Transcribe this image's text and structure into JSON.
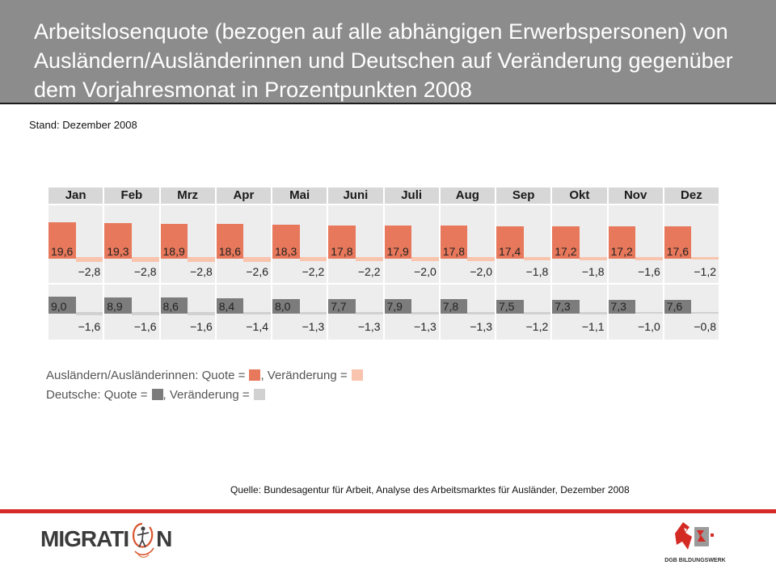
{
  "chart_data": {
    "type": "bar",
    "title_lines": [
      "Arbeitslosenquote (bezogen auf alle abhängigen Erwerbspersonen) von",
      "Ausländern/Ausländerinnen und Deutschen auf Veränderung gegenüber",
      "dem Vorjahresmonat in Prozentpunkten 2008"
    ],
    "subtitle": "Stand: Dezember 2008",
    "categories": [
      "Jan",
      "Feb",
      "Mrz",
      "Apr",
      "Mai",
      "Juni",
      "Juli",
      "Aug",
      "Sep",
      "Okt",
      "Nov",
      "Dez"
    ],
    "series": [
      {
        "legend_text": "Ausländern/Ausländerinnen: Quote =",
        "color": "#e8785b",
        "values": [
          19.6,
          19.3,
          18.9,
          18.6,
          18.3,
          17.8,
          17.9,
          17.8,
          17.4,
          17.2,
          17.2,
          17.6
        ]
      },
      {
        "legend_text": ", Veränderung =",
        "color": "#f8c4ad",
        "values": [
          -2.8,
          -2.8,
          -2.8,
          -2.6,
          -2.2,
          -2.2,
          -2.0,
          -2.0,
          -1.8,
          -1.8,
          -1.6,
          -1.2
        ]
      },
      {
        "legend_text": "Deutsche: Quote =",
        "color": "#7c7c7c",
        "values": [
          9.0,
          8.9,
          8.6,
          8.4,
          8.0,
          7.7,
          7.9,
          7.8,
          7.5,
          7.3,
          7.3,
          7.6
        ]
      },
      {
        "legend_text": ", Veränderung =",
        "color": "#d1d1d1",
        "values": [
          -1.6,
          -1.6,
          -1.6,
          -1.4,
          -1.3,
          -1.3,
          -1.3,
          -1.3,
          -1.2,
          -1.1,
          -1.0,
          -0.8
        ]
      }
    ],
    "data_labels": true,
    "grid": false,
    "legend_position": "bottom-left",
    "source": "Quelle: Bundesagentur für Arbeit, Analyse des Arbeitsmarktes für Ausländer, Dezember 2008"
  },
  "logos": {
    "migration": {
      "before": "MIGRATI",
      "after": "N"
    },
    "dgb": "DGB BILDUNGSWERK"
  },
  "brand_red": "#d52a27"
}
